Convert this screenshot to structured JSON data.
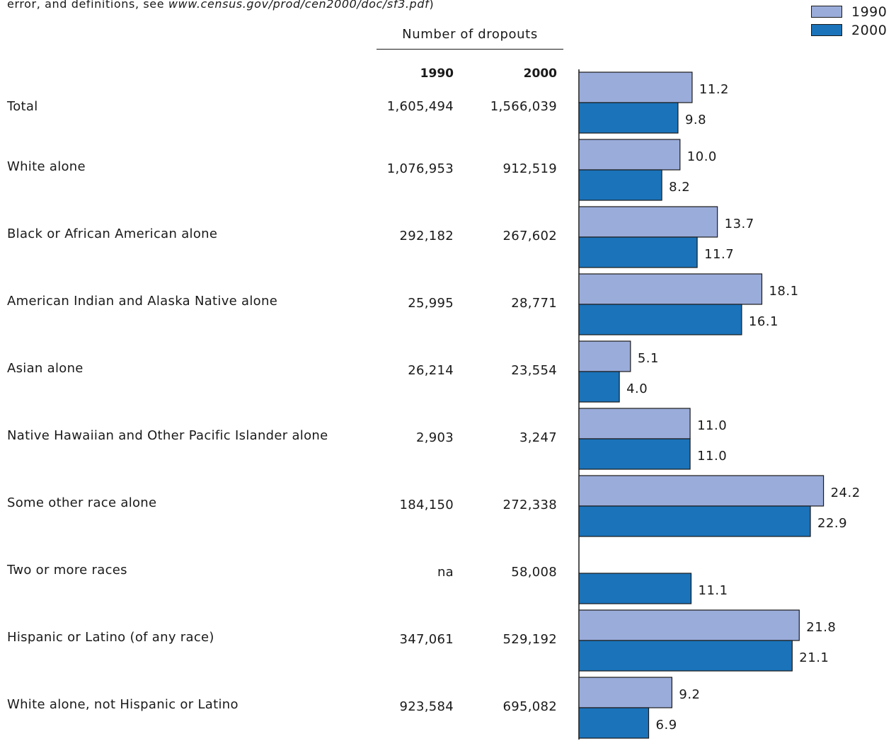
{
  "note": {
    "text": "error, and definitions, see ",
    "link": "www.census.gov/prod/cen2000/doc/sf3.pdf",
    "suffix": ")"
  },
  "colors": {
    "y1990": "#9aacda",
    "y2000": "#1b73ba",
    "text": "#1a1a1a"
  },
  "legend": [
    {
      "label": "1990",
      "color_key": "y1990"
    },
    {
      "label": "2000",
      "color_key": "y2000"
    }
  ],
  "table": {
    "group_header": "Number of dropouts",
    "year_headers": [
      "1990",
      "2000"
    ],
    "rows": [
      {
        "label": "Total",
        "n1990": "1,605,494",
        "n2000": "1,566,039"
      },
      {
        "label": "White alone",
        "n1990": "1,076,953",
        "n2000": "912,519"
      },
      {
        "label": "Black or African American alone",
        "n1990": "292,182",
        "n2000": "267,602"
      },
      {
        "label": "American Indian and Alaska Native alone",
        "n1990": "25,995",
        "n2000": "28,771"
      },
      {
        "label": "Asian alone",
        "n1990": "26,214",
        "n2000": "23,554"
      },
      {
        "label": "Native Hawaiian and Other Pacific Islander alone",
        "n1990": "2,903",
        "n2000": "3,247"
      },
      {
        "label": "Some other race alone",
        "n1990": "184,150",
        "n2000": "272,338"
      },
      {
        "label": "Two or more races",
        "n1990": "na",
        "n2000": "58,008"
      },
      {
        "label": "Hispanic or Latino (of any race)",
        "n1990": "347,061",
        "n2000": "529,192"
      },
      {
        "label": "White alone, not Hispanic or Latino",
        "n1990": "923,584",
        "n2000": "695,082"
      }
    ]
  },
  "chart_data": {
    "type": "bar",
    "orientation": "horizontal",
    "categories": [
      "Total",
      "White alone",
      "Black or African American alone",
      "American Indian and Alaska Native alone",
      "Asian alone",
      "Native Hawaiian and Other Pacific Islander alone",
      "Some other race alone",
      "Two or more races",
      "Hispanic or Latino (of any race)",
      "White alone, not Hispanic or Latino"
    ],
    "series": [
      {
        "name": "1990",
        "values": [
          11.2,
          10.0,
          13.7,
          18.1,
          5.1,
          11.0,
          24.2,
          null,
          21.8,
          9.2
        ]
      },
      {
        "name": "2000",
        "values": [
          9.8,
          8.2,
          11.7,
          16.1,
          4.0,
          11.0,
          22.9,
          11.1,
          21.1,
          6.9
        ]
      }
    ],
    "value_labels": [
      [
        "11.2",
        "10.0",
        "13.7",
        "18.1",
        "5.1",
        "11.0",
        "24.2",
        "",
        "21.8",
        "9.2"
      ],
      [
        "9.8",
        "8.2",
        "11.7",
        "16.1",
        "4.0",
        "11.0",
        "22.9",
        "11.1",
        "21.1",
        "6.9"
      ]
    ],
    "legend_position": "top-right",
    "grid": false
  }
}
